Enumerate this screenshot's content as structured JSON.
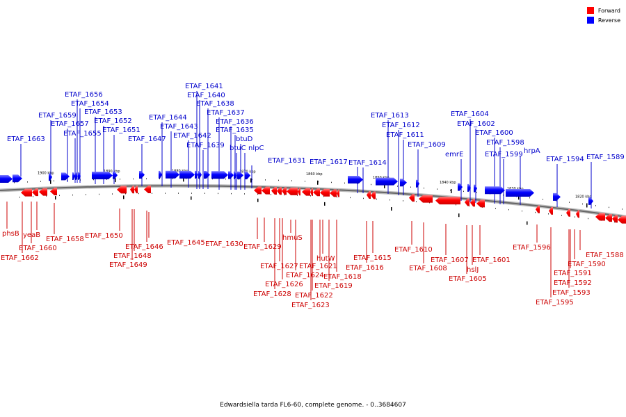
{
  "caption": "Edwardsiella tarda FL6-60, complete genome. - 0..3684607",
  "legend": {
    "forward": {
      "label": "Forward",
      "color": "#ff0000"
    },
    "reverse": {
      "label": "Reverse",
      "color": "#0000ff"
    }
  },
  "kbp_marks": [
    "1900 kbp",
    "1890 kbp",
    "1880 kbp",
    "1870 kbp",
    "1860 kbp",
    "1850 kbp",
    "1840 kbp",
    "1830 kbp",
    "1820 kbp"
  ],
  "forward_genes": [
    "ETAF_1662",
    "ETAF_1660",
    "yeaB",
    "phsB",
    "ETAF_1658",
    "ETAF_1650",
    "ETAF_1649",
    "ETAF_1648",
    "ETAF_1646",
    "ETAF_1645",
    "ETAF_1630",
    "ETAF_1629",
    "ETAF_1628",
    "ETAF_1627",
    "ETAF_1626",
    "hmuS",
    "ETAF_1624",
    "ETAF_1623",
    "ETAF_1622",
    "ETAF_1621",
    "hutW",
    "ETAF_1619",
    "ETAF_1618",
    "ETAF_1616",
    "ETAF_1615",
    "ETAF_1610",
    "ETAF_1608",
    "ETAF_1607",
    "ETAF_1605",
    "hslJ",
    "ETAF_1601",
    "ETAF_1596",
    "ETAF_1595",
    "ETAF_1593",
    "ETAF_1592",
    "ETAF_1591",
    "ETAF_1590",
    "ETAF_1588"
  ],
  "reverse_genes": [
    "ETAF_1663",
    "ETAF_1659",
    "ETAF_1657",
    "ETAF_1656",
    "ETAF_1655",
    "ETAF_1654",
    "ETAF_1653",
    "ETAF_1652",
    "ETAF_1651",
    "ETAF_1647",
    "ETAF_1644",
    "ETAF_1643",
    "ETAF_1642",
    "ETAF_1641",
    "ETAF_1640",
    "ETAF_1639",
    "ETAF_1638",
    "ETAF_1637",
    "ETAF_1636",
    "ETAF_1635",
    "btuD",
    "btuC",
    "nlpC",
    "ETAF_1631",
    "ETAF_1617",
    "ETAF_1614",
    "ETAF_1613",
    "ETAF_1612",
    "ETAF_1611",
    "ETAF_1609",
    "emrE",
    "ETAF_1604",
    "ETAF_1602",
    "ETAF_1600",
    "ETAF_1599",
    "ETAF_1598",
    "hrpA",
    "ETAF_1594",
    "ETAF_1589"
  ]
}
